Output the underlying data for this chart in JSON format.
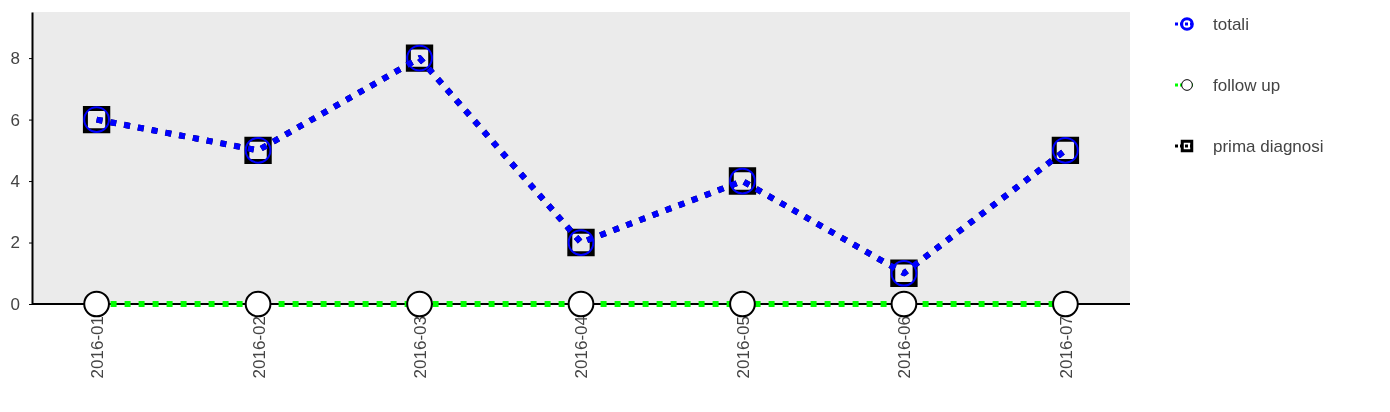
{
  "chart_data": {
    "type": "line",
    "categories": [
      "2016-01",
      "2016-02",
      "2016-03",
      "2016-04",
      "2016-05",
      "2016-06",
      "2016-07"
    ],
    "series": [
      {
        "name": "totali",
        "color": "#0000ff",
        "values": [
          6,
          5,
          8,
          2,
          4,
          1,
          5
        ],
        "marker": "circle",
        "line_style": "dotted"
      },
      {
        "name": "follow up",
        "color": "#00ff00",
        "values": [
          0,
          0,
          0,
          0,
          0,
          0,
          0
        ],
        "marker": "circle",
        "line_style": "dotted"
      },
      {
        "name": "prima diagnosi",
        "color": "#000000",
        "values": [
          6,
          5,
          8,
          2,
          4,
          1,
          5
        ],
        "marker": "square",
        "line_style": "dotted"
      }
    ],
    "ylim": [
      0,
      9.5
    ],
    "yticks": [
      0,
      2,
      4,
      6,
      8
    ],
    "grid": false,
    "legend": "top right"
  }
}
